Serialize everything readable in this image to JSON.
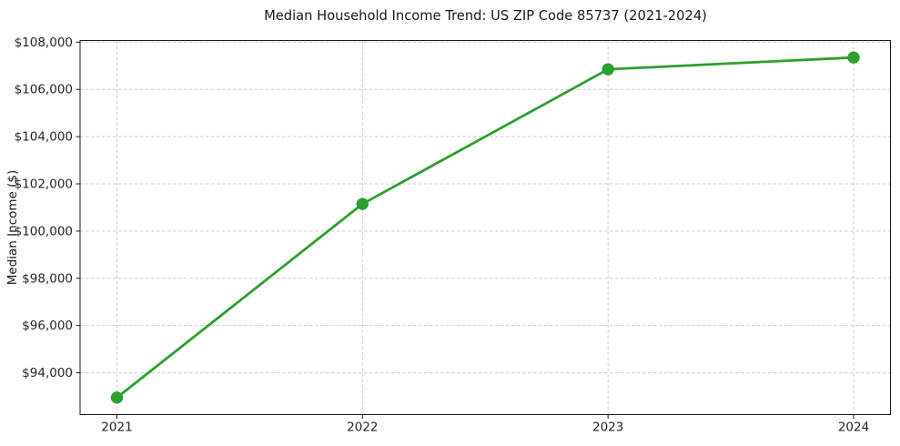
{
  "chart_data": {
    "type": "line",
    "title": "Median Household Income Trend: US ZIP Code 85737 (2021-2024)",
    "xlabel": "",
    "ylabel": "Median Income ($)",
    "x": [
      2021,
      2022,
      2023,
      2024
    ],
    "series": [
      {
        "name": "Median Household Income",
        "values": [
          92950,
          101150,
          106850,
          107350
        ]
      }
    ],
    "xticks": [
      2021,
      2022,
      2023,
      2024
    ],
    "xtick_labels": [
      "2021",
      "2022",
      "2023",
      "2024"
    ],
    "yticks": [
      94000,
      96000,
      98000,
      100000,
      102000,
      104000,
      106000,
      108000
    ],
    "ytick_labels": [
      "$94,000",
      "$96,000",
      "$98,000",
      "$100,000",
      "$102,000",
      "$104,000",
      "$106,000",
      "$108,000"
    ],
    "xlim": [
      2020.85,
      2024.15
    ],
    "ylim": [
      92230,
      108070
    ],
    "grid": true,
    "grid_style": "dashed",
    "legend": false,
    "colors": {
      "line": "#2ca02c",
      "marker": "#2ca02c",
      "grid": "#cccccc",
      "spine": "#1a1a1a",
      "text": "#262626",
      "background": "#ffffff"
    }
  }
}
